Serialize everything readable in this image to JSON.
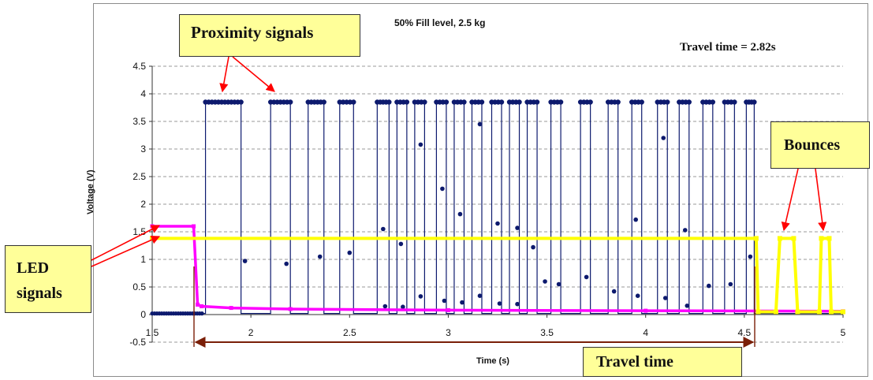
{
  "chart_data": {
    "type": "line",
    "title": "50%  Fill level, 2.5 kg",
    "annotation_text": "Travel time = 2.82s",
    "xlabel": "Time (s)",
    "ylabel": "Voltage (V)",
    "xlim": [
      1.5,
      5
    ],
    "ylim": [
      -0.5,
      4.5
    ],
    "x_ticks": [
      1.5,
      2,
      2.5,
      3,
      3.5,
      4,
      4.5,
      5
    ],
    "x_tick_labels": [
      "1.5",
      "2",
      "2.5",
      "3",
      "3.5",
      "4",
      "4.5",
      "5"
    ],
    "y_ticks": [
      -0.5,
      0,
      0.5,
      1,
      1.5,
      2,
      2.5,
      3,
      3.5,
      4,
      4.5
    ],
    "y_tick_labels": [
      "-0.5",
      "0",
      "0.5",
      "1",
      "1.5",
      "2",
      "2.5",
      "3",
      "3.5",
      "4",
      "4.5"
    ],
    "grid": "horizontal dashed",
    "series": [
      {
        "color": "#0d1a6e",
        "high": 3.85,
        "low": 0.02,
        "pulses": [
          [
            1.77,
            1.95
          ],
          [
            2.1,
            2.2
          ],
          [
            2.29,
            2.37
          ],
          [
            2.45,
            2.52
          ],
          [
            2.64,
            2.7
          ],
          [
            2.74,
            2.79
          ],
          [
            2.83,
            2.88
          ],
          [
            2.94,
            2.99
          ],
          [
            3.03,
            3.08
          ],
          [
            3.12,
            3.17
          ],
          [
            3.22,
            3.27
          ],
          [
            3.31,
            3.36
          ],
          [
            3.4,
            3.45
          ],
          [
            3.52,
            3.57
          ],
          [
            3.67,
            3.72
          ],
          [
            3.81,
            3.86
          ],
          [
            3.93,
            3.98
          ],
          [
            4.06,
            4.11
          ],
          [
            4.17,
            4.22
          ],
          [
            4.29,
            4.34
          ],
          [
            4.4,
            4.45
          ],
          [
            4.51,
            4.55
          ]
        ],
        "transition_points": [
          [
            1.97,
            0.97
          ],
          [
            2.18,
            0.92
          ],
          [
            2.35,
            1.05
          ],
          [
            2.5,
            1.12
          ],
          [
            2.67,
            1.55
          ],
          [
            2.68,
            0.15
          ],
          [
            2.76,
            1.28
          ],
          [
            2.77,
            0.14
          ],
          [
            2.86,
            3.08
          ],
          [
            2.86,
            0.33
          ],
          [
            2.97,
            2.28
          ],
          [
            2.98,
            0.25
          ],
          [
            3.06,
            1.82
          ],
          [
            3.07,
            0.22
          ],
          [
            3.16,
            3.45
          ],
          [
            3.16,
            0.34
          ],
          [
            3.25,
            1.65
          ],
          [
            3.26,
            0.2
          ],
          [
            3.35,
            1.57
          ],
          [
            3.35,
            0.19
          ],
          [
            3.43,
            1.22
          ],
          [
            3.49,
            0.6
          ],
          [
            3.56,
            0.55
          ],
          [
            3.7,
            0.68
          ],
          [
            3.84,
            0.42
          ],
          [
            3.95,
            1.72
          ],
          [
            3.96,
            0.34
          ],
          [
            4.09,
            3.2
          ],
          [
            4.1,
            0.3
          ],
          [
            4.2,
            1.53
          ],
          [
            4.21,
            0.16
          ],
          [
            4.32,
            0.52
          ],
          [
            4.43,
            0.55
          ],
          [
            4.53,
            1.05
          ]
        ]
      },
      {
        "color": "#ff00ff",
        "segments": [
          [
            1.5,
            1.6
          ],
          [
            1.71,
            1.6
          ],
          [
            1.73,
            0.18
          ],
          [
            1.75,
            0.15
          ],
          [
            1.9,
            0.12
          ],
          [
            2.2,
            0.1
          ],
          [
            3.0,
            0.08
          ],
          [
            4.0,
            0.07
          ],
          [
            5.0,
            0.06
          ]
        ]
      },
      {
        "color": "#ffff00",
        "segments": [
          [
            1.5,
            1.38
          ],
          [
            4.56,
            1.38
          ],
          [
            4.57,
            0.05
          ],
          [
            4.66,
            0.05
          ],
          [
            4.68,
            1.38
          ],
          [
            4.75,
            1.38
          ],
          [
            4.77,
            0.05
          ],
          [
            4.88,
            0.05
          ],
          [
            4.89,
            1.38
          ],
          [
            4.93,
            1.38
          ],
          [
            4.94,
            0.05
          ],
          [
            5.0,
            0.05
          ]
        ]
      }
    ]
  },
  "callouts": {
    "proximity": "Proximity signals",
    "bounces": "Bounces",
    "led_line1": "LED",
    "led_line2": "signals",
    "travel_time": "Travel time"
  },
  "colors": {
    "proximity_series": "#0d1a6e",
    "led_series": "#ff00ff",
    "bounce_series": "#ffff00",
    "arrow": "#ff0000",
    "travel_arrow": "#7a1f08",
    "callout_fill": "#ffff99"
  }
}
